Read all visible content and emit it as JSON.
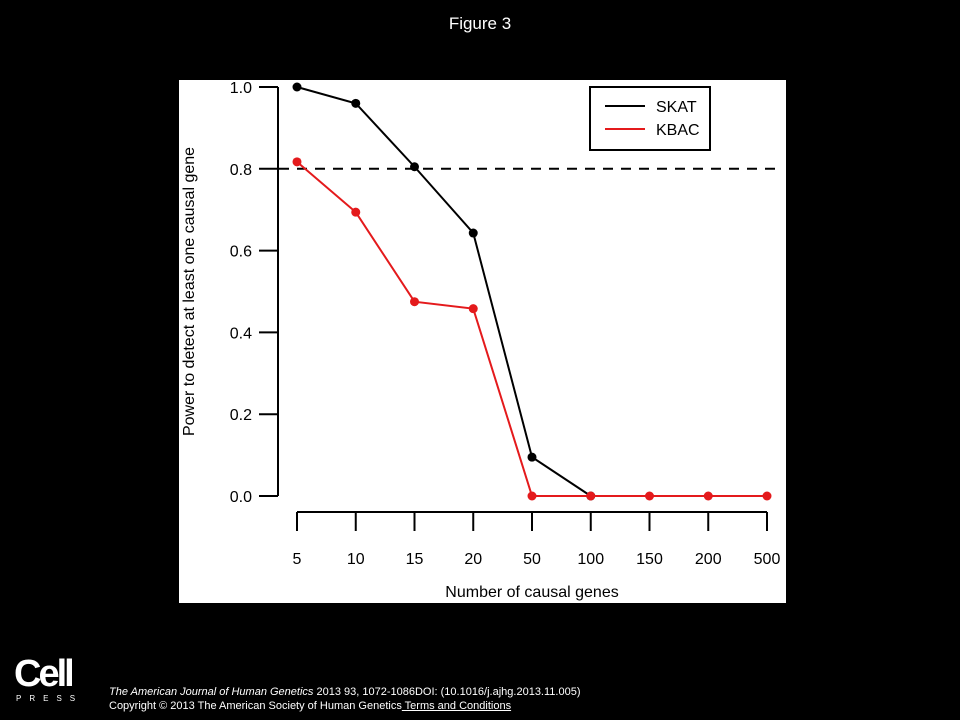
{
  "slide": {
    "title": "Figure 3"
  },
  "chart_data": {
    "type": "line",
    "title": "",
    "xlabel": "Number of causal genes",
    "ylabel": "Power to detect at least one causal gene",
    "categories": [
      "5",
      "10",
      "15",
      "20",
      "50",
      "100",
      "150",
      "200",
      "500"
    ],
    "ylim": [
      0,
      1.0
    ],
    "yticks": [
      "0.0",
      "0.2",
      "0.4",
      "0.6",
      "0.8",
      "1.0"
    ],
    "reference_line": {
      "y": 0.8,
      "style": "dashed"
    },
    "legend_position": "top-right",
    "grid": false,
    "series": [
      {
        "name": "SKAT",
        "color": "#000000",
        "values": [
          1.0,
          0.96,
          0.805,
          0.643,
          0.095,
          0.0,
          null,
          null,
          null
        ]
      },
      {
        "name": "KBAC",
        "color": "#e41a1c",
        "values": [
          0.817,
          0.694,
          0.475,
          0.458,
          0.0,
          0.0,
          0.0,
          0.0,
          0.0
        ]
      }
    ]
  },
  "footer": {
    "logo_word": "Cell",
    "logo_sub": "PRESS",
    "journal": "The American Journal of Human Genetics",
    "citation": " 2013 93, 1072-1086DOI: (10.1016/j.ajhg.2013.11.005)",
    "copyright": "Copyright © 2013 The American Society of Human Genetics",
    "terms_link": " Terms and Conditions"
  }
}
